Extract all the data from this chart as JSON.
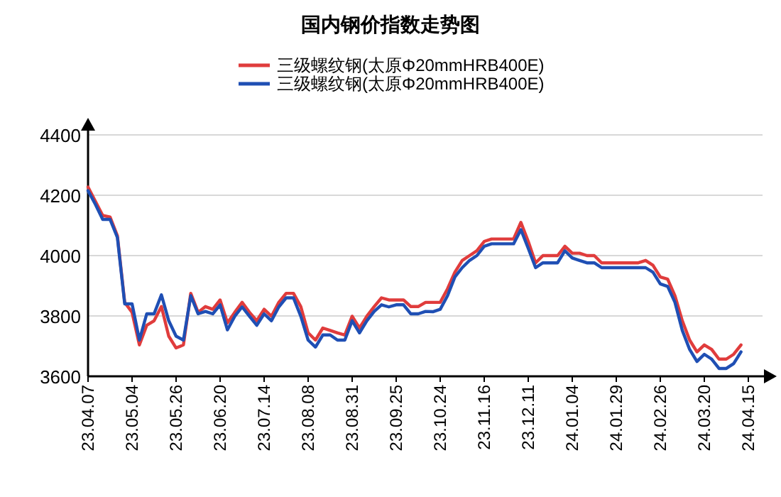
{
  "chart_data": {
    "type": "line",
    "title": "国内钢价指数走势图",
    "categories": [
      "23.04.07",
      null,
      null,
      null,
      null,
      null,
      "23.05.04",
      null,
      null,
      null,
      null,
      null,
      "23.05.26",
      null,
      null,
      null,
      null,
      null,
      "23.06.20",
      null,
      null,
      null,
      null,
      null,
      "23.07.14",
      null,
      null,
      null,
      null,
      null,
      "23.08.08",
      null,
      null,
      null,
      null,
      null,
      "23.08.31",
      null,
      null,
      null,
      null,
      null,
      "23.09.25",
      null,
      null,
      null,
      null,
      null,
      "23.10.24",
      null,
      null,
      null,
      null,
      null,
      "23.11.16",
      null,
      null,
      null,
      null,
      null,
      "23.12.11",
      null,
      null,
      null,
      null,
      null,
      "24.01.04",
      null,
      null,
      null,
      null,
      null,
      "24.01.29",
      null,
      null,
      null,
      null,
      null,
      "24.02.26",
      null,
      null,
      null,
      null,
      null,
      "24.03.20",
      null,
      null,
      null,
      null,
      null,
      "24.04.15"
    ],
    "series": [
      {
        "name": "三级螺纹钢(太原Φ20mmHRB400E)",
        "color": "#e03c3c",
        "values": [
          4227,
          4180,
          4133,
          4128,
          4066,
          3845,
          3812,
          3704,
          3769,
          3784,
          3831,
          3733,
          3694,
          3704,
          3875,
          3812,
          3831,
          3822,
          3853,
          3777,
          3812,
          3845,
          3812,
          3784,
          3822,
          3799,
          3845,
          3875,
          3875,
          3831,
          3744,
          3720,
          3760,
          3752,
          3744,
          3737,
          3799,
          3760,
          3799,
          3831,
          3860,
          3853,
          3853,
          3853,
          3831,
          3831,
          3845,
          3845,
          3845,
          3890,
          3945,
          3984,
          4000,
          4016,
          4047,
          4055,
          4055,
          4055,
          4055,
          4110,
          4047,
          3976,
          4000,
          4000,
          4000,
          4031,
          4008,
          4008,
          4000,
          4000,
          3976,
          3976,
          3976,
          3976,
          3976,
          3976,
          3984,
          3968,
          3929,
          3922,
          3867,
          3784,
          3720,
          3681,
          3704,
          3689,
          3657,
          3657,
          3673,
          3704,
          null
        ]
      },
      {
        "name": "三级螺纹钢(太原Φ20mmHRB400E)",
        "color": "#1f4fb4",
        "values": [
          4215,
          4170,
          4120,
          4120,
          4060,
          3840,
          3840,
          3720,
          3807,
          3807,
          3870,
          3784,
          3733,
          3720,
          3867,
          3807,
          3815,
          3807,
          3837,
          3754,
          3799,
          3830,
          3799,
          3769,
          3807,
          3784,
          3830,
          3860,
          3860,
          3799,
          3720,
          3697,
          3737,
          3737,
          3720,
          3720,
          3784,
          3744,
          3784,
          3815,
          3837,
          3830,
          3837,
          3837,
          3807,
          3807,
          3815,
          3814,
          3822,
          3867,
          3929,
          3960,
          3984,
          4000,
          4031,
          4039,
          4039,
          4039,
          4039,
          4086,
          4024,
          3960,
          3976,
          3976,
          3976,
          4016,
          3992,
          3984,
          3976,
          3976,
          3960,
          3960,
          3960,
          3960,
          3960,
          3960,
          3960,
          3945,
          3906,
          3898,
          3845,
          3752,
          3689,
          3649,
          3673,
          3657,
          3626,
          3626,
          3642,
          3681,
          null
        ]
      }
    ],
    "ylim": [
      3600,
      4400
    ],
    "yticks": [
      3600,
      3800,
      4000,
      4200,
      4400
    ],
    "grid": "y",
    "legend": "top"
  }
}
